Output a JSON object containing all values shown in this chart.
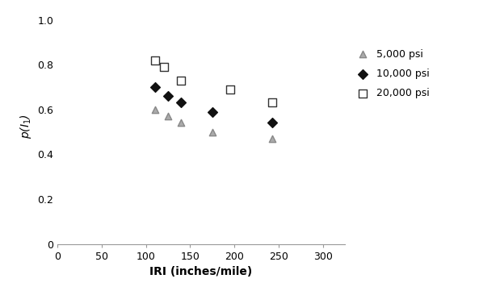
{
  "series": [
    {
      "label": "5,000 psi",
      "x": [
        110,
        125,
        140,
        175,
        243
      ],
      "y": [
        0.6,
        0.57,
        0.54,
        0.5,
        0.47
      ],
      "marker": "^",
      "markersize": 6,
      "facecolor": "#aaaaaa",
      "edgecolor": "#888888"
    },
    {
      "label": "10,000 psi",
      "x": [
        110,
        125,
        140,
        175,
        243
      ],
      "y": [
        0.7,
        0.66,
        0.63,
        0.59,
        0.54
      ],
      "marker": "D",
      "markersize": 6,
      "facecolor": "#111111",
      "edgecolor": "#111111"
    },
    {
      "label": "20,000 psi",
      "x": [
        110,
        120,
        140,
        195,
        243
      ],
      "y": [
        0.82,
        0.79,
        0.73,
        0.69,
        0.63
      ],
      "marker": "s",
      "markersize": 7,
      "facecolor": "white",
      "edgecolor": "#333333"
    }
  ],
  "xlabel": "IRI (inches/mile)",
  "xlim": [
    0,
    325
  ],
  "ylim": [
    0,
    1.05
  ],
  "xticks": [
    0,
    50,
    100,
    150,
    200,
    250,
    300
  ],
  "yticks": [
    0,
    0.2,
    0.4,
    0.6,
    0.8,
    1.0
  ],
  "background_color": "#ffffff"
}
